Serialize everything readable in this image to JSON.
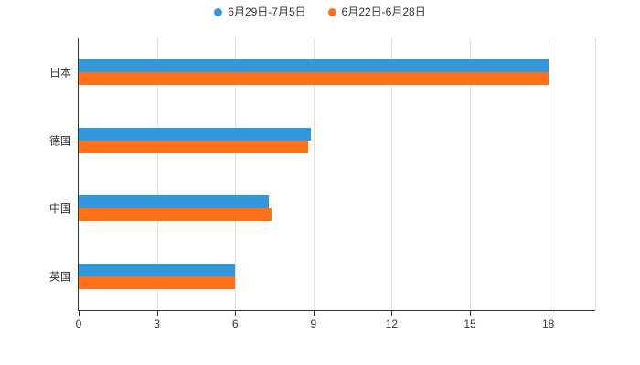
{
  "chart_data": {
    "type": "bar",
    "orientation": "horizontal",
    "title": "",
    "categories": [
      "日本",
      "德国",
      "中国",
      "英国"
    ],
    "series": [
      {
        "name": "6月29日-7月5日",
        "color": "#3398DB",
        "values": [
          18,
          8.9,
          7.3,
          6
        ]
      },
      {
        "name": "6月22日-6月28日",
        "color": "#FF7119",
        "values": [
          18,
          8.8,
          7.4,
          6
        ]
      }
    ],
    "xticks": [
      0,
      3,
      6,
      9,
      12,
      15,
      18
    ],
    "xmax": 19.8,
    "grid": true,
    "legend_position": "top",
    "axis_color": "#333333",
    "gridline_color": "#e0e0e0"
  }
}
